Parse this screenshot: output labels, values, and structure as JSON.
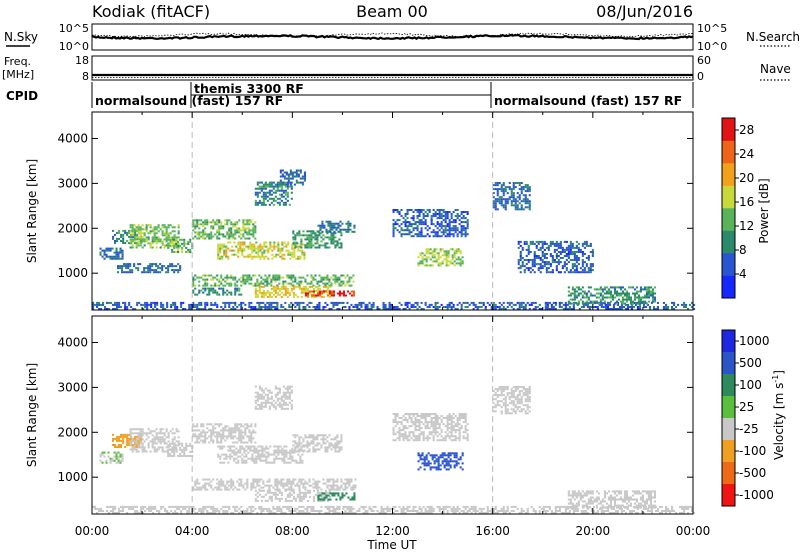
{
  "header": {
    "station": "Kodiak (fitACF)",
    "beam": "Beam 00",
    "date": "08/Jun/2016"
  },
  "top_panels": {
    "nsky_label": "N.Sky",
    "nsky_ticks": [
      "10^5",
      "10^0"
    ],
    "nsearch_label": "N.Search",
    "nsearch_ticks": [
      "10^5",
      "10^0"
    ],
    "freq_label": "Freq.",
    "freq_unit": "[MHz]",
    "freq_ticks": [
      "18",
      "8"
    ],
    "nave_label": "Nave",
    "nave_ticks": [
      "60",
      "0"
    ],
    "cpid_label": "CPID",
    "cpid_segments": [
      {
        "label": "normalsound (fast) 157 RF",
        "start_hour": 0
      },
      {
        "label": "themis 3300 RF",
        "start_hour": 4
      },
      {
        "label": "normalsound (fast) 157 RF",
        "start_hour": 16
      }
    ]
  },
  "chart_data": [
    {
      "type": "heatmap",
      "name": "power",
      "ylabel": "Slant Range [km]",
      "ylim": [
        180,
        4590
      ],
      "yticks": [
        1000,
        2000,
        3000,
        4000
      ],
      "xlim": [
        0,
        24
      ],
      "colorbar": {
        "label": "Power [dB]",
        "range": [
          0,
          30
        ],
        "ticks": [
          "4",
          "8",
          "12",
          "16",
          "20",
          "24",
          "28"
        ],
        "colors": [
          "#1428ff",
          "#2a55d2",
          "#2c8a6c",
          "#58b35a",
          "#c9d93a",
          "#f2a21a",
          "#ee6418",
          "#e01414"
        ]
      },
      "regions": [
        {
          "t0": 0.0,
          "t1": 24.0,
          "r0": 180,
          "r1": 330,
          "value": 6
        },
        {
          "t0": 0.3,
          "t1": 1.2,
          "r0": 1300,
          "r1": 1550,
          "value": 8
        },
        {
          "t0": 0.8,
          "t1": 2.0,
          "r0": 1650,
          "r1": 1950,
          "value": 10
        },
        {
          "t0": 1.5,
          "t1": 3.5,
          "r0": 1550,
          "r1": 2050,
          "value": 14
        },
        {
          "t0": 1.0,
          "t1": 3.5,
          "r0": 1000,
          "r1": 1200,
          "value": 7
        },
        {
          "t0": 3.0,
          "t1": 4.0,
          "r0": 1450,
          "r1": 1750,
          "value": 13
        },
        {
          "t0": 4.0,
          "t1": 6.5,
          "r0": 1750,
          "r1": 2200,
          "value": 13
        },
        {
          "t0": 5.0,
          "t1": 8.5,
          "r0": 1300,
          "r1": 1700,
          "value": 17
        },
        {
          "t0": 8.0,
          "t1": 10.0,
          "r0": 1550,
          "r1": 1950,
          "value": 11
        },
        {
          "t0": 9.0,
          "t1": 10.5,
          "r0": 1900,
          "r1": 2150,
          "value": 8
        },
        {
          "t0": 4.0,
          "t1": 10.5,
          "r0": 700,
          "r1": 950,
          "value": 13
        },
        {
          "t0": 6.5,
          "t1": 9.5,
          "r0": 450,
          "r1": 700,
          "value": 18
        },
        {
          "t0": 8.5,
          "t1": 10.5,
          "r0": 480,
          "r1": 600,
          "value": 27
        },
        {
          "t0": 4.0,
          "t1": 6.0,
          "r0": 500,
          "r1": 650,
          "value": 9
        },
        {
          "t0": 6.5,
          "t1": 8.0,
          "r0": 2500,
          "r1": 3000,
          "value": 9
        },
        {
          "t0": 7.5,
          "t1": 8.5,
          "r0": 2950,
          "r1": 3300,
          "value": 7
        },
        {
          "t0": 13.0,
          "t1": 14.8,
          "r0": 1150,
          "r1": 1550,
          "value": 15
        },
        {
          "t0": 12.0,
          "t1": 15.0,
          "r0": 1800,
          "r1": 2400,
          "value": 6
        },
        {
          "t0": 16.0,
          "t1": 17.5,
          "r0": 2400,
          "r1": 3000,
          "value": 7
        },
        {
          "t0": 17.0,
          "t1": 20.0,
          "r0": 1000,
          "r1": 1700,
          "value": 6
        },
        {
          "t0": 19.0,
          "t1": 22.5,
          "r0": 300,
          "r1": 700,
          "value": 10
        }
      ]
    },
    {
      "type": "heatmap",
      "name": "velocity",
      "ylabel": "Slant Range [km]",
      "ylim": [
        180,
        4590
      ],
      "yticks": [
        1000,
        2000,
        3000,
        4000
      ],
      "xlim": [
        0,
        24
      ],
      "xticks": [
        "00:00",
        "04:00",
        "08:00",
        "12:00",
        "16:00",
        "20:00",
        "00:00"
      ],
      "xlabel": "Time UT",
      "colorbar": {
        "label": "Velocity [m s",
        "label_exponent": "-1",
        "label_close": "]",
        "ticks": [
          "1000",
          "500",
          "100",
          "25",
          "-25",
          "-100",
          "-500",
          "-1000"
        ],
        "colors": [
          "#1e28e0",
          "#2a55c8",
          "#2c8a5c",
          "#5abf3c",
          "#c8c8c8",
          "#f0a020",
          "#ee6a18",
          "#f01414"
        ]
      },
      "regions": [
        {
          "t0": 0.0,
          "t1": 24.0,
          "r0": 180,
          "r1": 330,
          "value": 0
        },
        {
          "t0": 0.3,
          "t1": 1.2,
          "r0": 1300,
          "r1": 1550,
          "value": 10
        },
        {
          "t0": 0.8,
          "t1": 2.0,
          "r0": 1650,
          "r1": 1950,
          "value": -80
        },
        {
          "t0": 1.5,
          "t1": 3.5,
          "r0": 1550,
          "r1": 2050,
          "value": 0
        },
        {
          "t0": 3.0,
          "t1": 4.0,
          "r0": 1450,
          "r1": 1750,
          "value": 0
        },
        {
          "t0": 4.0,
          "t1": 6.5,
          "r0": 1750,
          "r1": 2200,
          "value": 0
        },
        {
          "t0": 5.0,
          "t1": 8.5,
          "r0": 1300,
          "r1": 1700,
          "value": 0
        },
        {
          "t0": 8.0,
          "t1": 10.0,
          "r0": 1550,
          "r1": 1950,
          "value": 0
        },
        {
          "t0": 4.0,
          "t1": 10.5,
          "r0": 700,
          "r1": 950,
          "value": 0
        },
        {
          "t0": 6.5,
          "t1": 9.5,
          "r0": 450,
          "r1": 700,
          "value": 0
        },
        {
          "t0": 9.0,
          "t1": 10.5,
          "r0": 480,
          "r1": 650,
          "value": 60
        },
        {
          "t0": 6.5,
          "t1": 8.0,
          "r0": 2500,
          "r1": 3000,
          "value": 0
        },
        {
          "t0": 13.0,
          "t1": 14.8,
          "r0": 1150,
          "r1": 1550,
          "value": 300
        },
        {
          "t0": 12.0,
          "t1": 15.0,
          "r0": 1800,
          "r1": 2400,
          "value": 0
        },
        {
          "t0": 16.0,
          "t1": 17.5,
          "r0": 2400,
          "r1": 3000,
          "value": 0
        },
        {
          "t0": 19.0,
          "t1": 22.5,
          "r0": 300,
          "r1": 700,
          "value": 0
        }
      ]
    }
  ]
}
